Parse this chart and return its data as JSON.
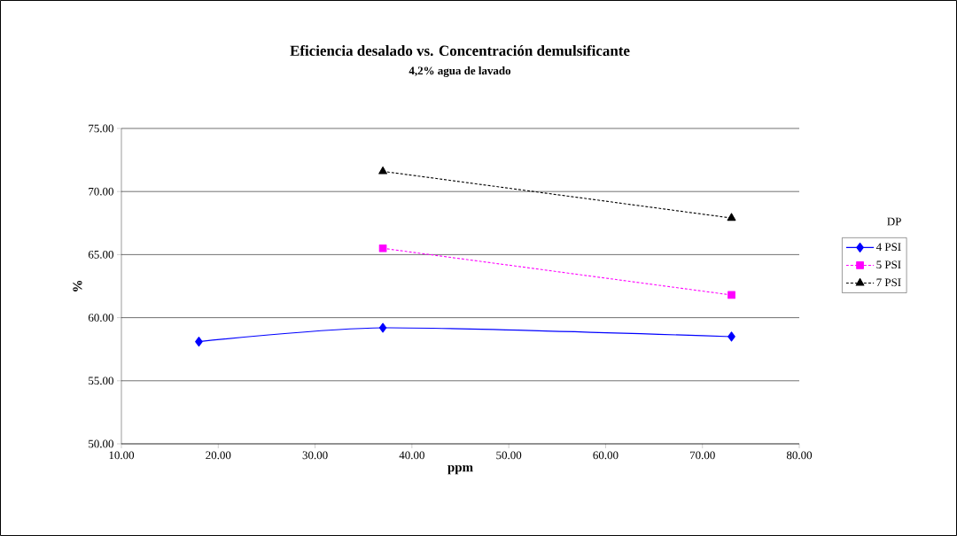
{
  "chart_data": {
    "type": "line",
    "title": "Eficiencia desalado vs. Concentración demulsificante",
    "subtitle": "4,2% agua de lavado",
    "xlabel": "ppm",
    "ylabel": "%",
    "legend_title": "DP",
    "xlim": [
      10,
      80
    ],
    "xticks": [
      {
        "value": 10,
        "label": "10.00"
      },
      {
        "value": 20,
        "label": "20.00"
      },
      {
        "value": 30,
        "label": "30.00"
      },
      {
        "value": 40,
        "label": "40.00"
      },
      {
        "value": 50,
        "label": "50.00"
      },
      {
        "value": 60,
        "label": "60.00"
      },
      {
        "value": 70,
        "label": "70.00"
      },
      {
        "value": 80,
        "label": "80.00"
      }
    ],
    "ylim": [
      50,
      75
    ],
    "yticks": [
      {
        "value": 50,
        "label": "50.00"
      },
      {
        "value": 55,
        "label": "55.00"
      },
      {
        "value": 60,
        "label": "60.00"
      },
      {
        "value": 65,
        "label": "65.00"
      },
      {
        "value": 70,
        "label": "70.00"
      },
      {
        "value": 75,
        "label": "75.00"
      }
    ],
    "grid": "y",
    "legend": "right",
    "series": [
      {
        "name": "4 PSI",
        "color": "#0000ff",
        "x": [
          18,
          37,
          73
        ],
        "values": [
          58.1,
          59.2,
          58.5
        ],
        "marker": "diamond",
        "line_style": "solid"
      },
      {
        "name": "5 PSI",
        "color": "#ff00ff",
        "x": [
          37,
          73
        ],
        "values": [
          65.5,
          61.8
        ],
        "marker": "square",
        "line_style": "dotted"
      },
      {
        "name": "7 PSI",
        "color": "#000000",
        "x": [
          37,
          73
        ],
        "values": [
          71.6,
          67.9
        ],
        "marker": "triangle",
        "line_style": "dotted"
      }
    ]
  }
}
